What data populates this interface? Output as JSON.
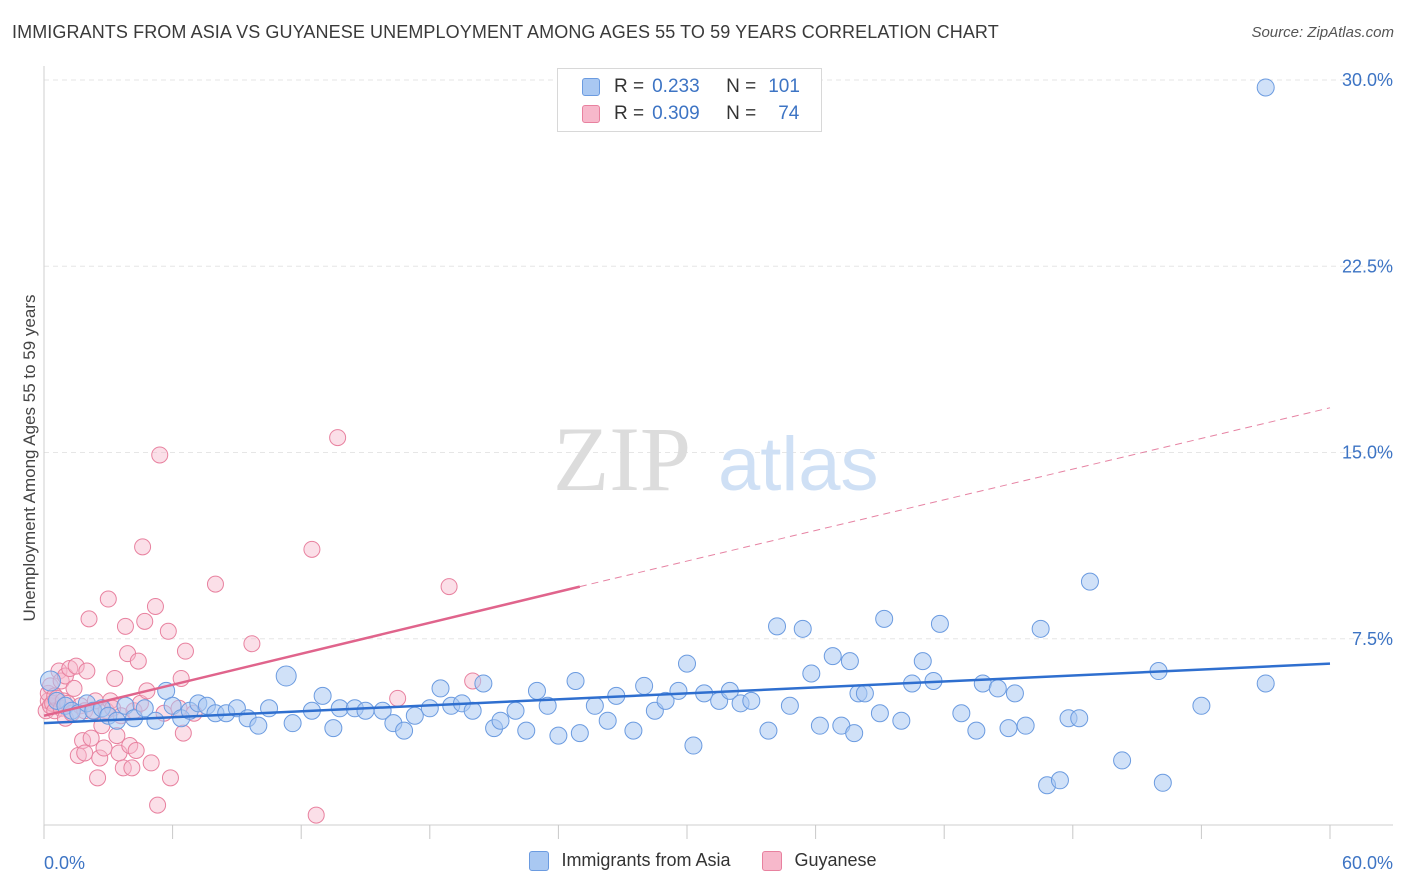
{
  "header": {
    "title": "IMMIGRANTS FROM ASIA VS GUYANESE UNEMPLOYMENT AMONG AGES 55 TO 59 YEARS CORRELATION CHART",
    "source": "Source: ZipAtlas.com"
  },
  "watermark": {
    "zip": "ZIP",
    "atlas": "atlas"
  },
  "legend": {
    "r_label": "R =",
    "n_label": "N =",
    "asia": {
      "r": "0.233",
      "n": "101"
    },
    "guyanese": {
      "r": "0.309",
      "n": "74"
    }
  },
  "colors": {
    "asia_fill": "#a9c8f2",
    "asia_stroke": "#6b9be0",
    "asia_line": "#2f6fcf",
    "guy_fill": "#f7b8cb",
    "guy_stroke": "#e8819f",
    "guy_line": "#e0648c",
    "grid": "#e6e6e6",
    "label": "#3d74c4"
  },
  "chart_data": {
    "type": "scatter",
    "title": "IMMIGRANTS FROM ASIA VS GUYANESE UNEMPLOYMENT AMONG AGES 55 TO 59 YEARS CORRELATION CHART",
    "xlabel": "",
    "ylabel": "Unemployment Among Ages 55 to 59 years",
    "xlim": [
      0,
      60
    ],
    "ylim": [
      0,
      30
    ],
    "x_tick_labels": [
      "0.0%",
      "60.0%"
    ],
    "y_ticks": [
      7.5,
      15.0,
      22.5,
      30.0
    ],
    "y_tick_labels": [
      "7.5%",
      "15.0%",
      "22.5%",
      "30.0%"
    ],
    "x_minor_ticks": [
      0,
      6,
      12,
      18,
      24,
      30,
      36,
      42,
      48,
      54,
      60
    ],
    "grid": true,
    "series": [
      {
        "name": "Immigrants from Asia",
        "r": 0.233,
        "n": 101,
        "trend": {
          "x": [
            0,
            60
          ],
          "y": [
            4.1,
            6.5
          ],
          "style": "solid"
        },
        "points": [
          [
            0.3,
            5.8
          ],
          [
            0.6,
            5.0
          ],
          [
            1.0,
            4.8
          ],
          [
            1.3,
            4.6
          ],
          [
            1.6,
            4.5
          ],
          [
            2.0,
            4.9
          ],
          [
            2.3,
            4.6
          ],
          [
            2.7,
            4.7
          ],
          [
            3.0,
            4.4
          ],
          [
            3.4,
            4.2
          ],
          [
            3.8,
            4.8
          ],
          [
            4.2,
            4.3
          ],
          [
            4.7,
            4.7
          ],
          [
            5.2,
            4.2
          ],
          [
            5.7,
            5.4
          ],
          [
            6.0,
            4.8
          ],
          [
            6.4,
            4.3
          ],
          [
            6.8,
            4.6
          ],
          [
            7.2,
            4.9
          ],
          [
            7.6,
            4.8
          ],
          [
            8.0,
            4.5
          ],
          [
            8.5,
            4.5
          ],
          [
            9.0,
            4.7
          ],
          [
            9.5,
            4.3
          ],
          [
            10.0,
            4.0
          ],
          [
            10.5,
            4.7
          ],
          [
            11.3,
            6.0
          ],
          [
            11.6,
            4.1
          ],
          [
            12.5,
            4.6
          ],
          [
            13.0,
            5.2
          ],
          [
            13.5,
            3.9
          ],
          [
            13.8,
            4.7
          ],
          [
            14.5,
            4.7
          ],
          [
            15.0,
            4.6
          ],
          [
            15.8,
            4.6
          ],
          [
            16.3,
            4.1
          ],
          [
            16.8,
            3.8
          ],
          [
            17.3,
            4.4
          ],
          [
            18.0,
            4.7
          ],
          [
            18.5,
            5.5
          ],
          [
            19.0,
            4.8
          ],
          [
            19.5,
            4.9
          ],
          [
            20.0,
            4.6
          ],
          [
            20.5,
            5.7
          ],
          [
            21.0,
            3.9
          ],
          [
            21.3,
            4.2
          ],
          [
            22.0,
            4.6
          ],
          [
            22.5,
            3.8
          ],
          [
            23.0,
            5.4
          ],
          [
            23.5,
            4.8
          ],
          [
            24.0,
            3.6
          ],
          [
            24.8,
            5.8
          ],
          [
            25.0,
            3.7
          ],
          [
            25.7,
            4.8
          ],
          [
            26.3,
            4.2
          ],
          [
            26.7,
            5.2
          ],
          [
            27.5,
            3.8
          ],
          [
            28.0,
            5.6
          ],
          [
            28.5,
            4.6
          ],
          [
            29.0,
            5.0
          ],
          [
            29.6,
            5.4
          ],
          [
            30.0,
            6.5
          ],
          [
            30.3,
            3.2
          ],
          [
            30.8,
            5.3
          ],
          [
            31.5,
            5.0
          ],
          [
            32.0,
            5.4
          ],
          [
            32.5,
            4.9
          ],
          [
            33.0,
            5.0
          ],
          [
            33.8,
            3.8
          ],
          [
            34.2,
            8.0
          ],
          [
            34.8,
            4.8
          ],
          [
            35.4,
            7.9
          ],
          [
            35.8,
            6.1
          ],
          [
            36.2,
            4.0
          ],
          [
            36.8,
            6.8
          ],
          [
            37.2,
            4.0
          ],
          [
            37.6,
            6.6
          ],
          [
            38.0,
            5.3
          ],
          [
            38.3,
            5.3
          ],
          [
            37.8,
            3.7
          ],
          [
            39.0,
            4.5
          ],
          [
            39.2,
            8.3
          ],
          [
            40.0,
            4.2
          ],
          [
            40.5,
            5.7
          ],
          [
            41.0,
            6.6
          ],
          [
            41.5,
            5.8
          ],
          [
            41.8,
            8.1
          ],
          [
            42.8,
            4.5
          ],
          [
            43.5,
            3.8
          ],
          [
            43.8,
            5.7
          ],
          [
            44.5,
            5.5
          ],
          [
            45.0,
            3.9
          ],
          [
            45.3,
            5.3
          ],
          [
            45.8,
            4.0
          ],
          [
            46.5,
            7.9
          ],
          [
            46.8,
            1.6
          ],
          [
            47.4,
            1.8
          ],
          [
            47.8,
            4.3
          ],
          [
            48.3,
            4.3
          ],
          [
            48.8,
            9.8
          ],
          [
            50.3,
            2.6
          ],
          [
            52.0,
            6.2
          ],
          [
            52.2,
            1.7
          ],
          [
            54.0,
            4.8
          ],
          [
            57.0,
            5.7
          ],
          [
            57.0,
            29.7
          ]
        ]
      },
      {
        "name": "Guyanese",
        "r": 0.309,
        "n": 74,
        "trend": {
          "x": [
            0,
            25
          ],
          "y": [
            4.4,
            9.6
          ],
          "style": "solid",
          "extended_to": [
            60,
            16.8
          ],
          "extended_style": "dashed"
        },
        "points": [
          [
            0.1,
            4.6
          ],
          [
            0.2,
            5.0
          ],
          [
            0.2,
            5.3
          ],
          [
            0.3,
            4.8
          ],
          [
            0.3,
            5.6
          ],
          [
            0.4,
            4.9
          ],
          [
            0.5,
            5.2
          ],
          [
            0.5,
            4.6
          ],
          [
            0.6,
            5.1
          ],
          [
            0.7,
            6.2
          ],
          [
            0.8,
            4.7
          ],
          [
            0.8,
            5.8
          ],
          [
            0.9,
            5.0
          ],
          [
            1.0,
            6.0
          ],
          [
            1.0,
            4.3
          ],
          [
            1.1,
            4.9
          ],
          [
            1.2,
            6.3
          ],
          [
            1.3,
            4.5
          ],
          [
            1.4,
            5.5
          ],
          [
            1.5,
            6.4
          ],
          [
            1.6,
            2.8
          ],
          [
            1.7,
            4.8
          ],
          [
            1.8,
            3.4
          ],
          [
            1.9,
            2.9
          ],
          [
            1.9,
            4.6
          ],
          [
            2.0,
            6.2
          ],
          [
            2.1,
            8.3
          ],
          [
            2.2,
            3.5
          ],
          [
            2.3,
            4.6
          ],
          [
            2.4,
            5.0
          ],
          [
            2.5,
            1.9
          ],
          [
            2.6,
            2.7
          ],
          [
            2.7,
            4.0
          ],
          [
            2.8,
            3.1
          ],
          [
            2.9,
            4.6
          ],
          [
            3.0,
            9.1
          ],
          [
            3.1,
            5.0
          ],
          [
            3.2,
            4.7
          ],
          [
            3.3,
            5.9
          ],
          [
            3.4,
            3.6
          ],
          [
            3.5,
            2.9
          ],
          [
            3.6,
            4.4
          ],
          [
            3.7,
            2.3
          ],
          [
            3.8,
            8.0
          ],
          [
            3.9,
            6.9
          ],
          [
            4.0,
            3.2
          ],
          [
            4.1,
            2.3
          ],
          [
            4.2,
            4.6
          ],
          [
            4.3,
            3.0
          ],
          [
            4.4,
            6.6
          ],
          [
            4.5,
            4.9
          ],
          [
            4.6,
            11.2
          ],
          [
            4.7,
            8.2
          ],
          [
            4.8,
            5.4
          ],
          [
            5.0,
            2.5
          ],
          [
            5.2,
            8.8
          ],
          [
            5.3,
            0.8
          ],
          [
            5.4,
            14.9
          ],
          [
            5.6,
            4.5
          ],
          [
            5.8,
            7.8
          ],
          [
            5.9,
            1.9
          ],
          [
            6.3,
            4.7
          ],
          [
            6.4,
            5.9
          ],
          [
            6.5,
            3.7
          ],
          [
            6.6,
            7.0
          ],
          [
            7.0,
            4.5
          ],
          [
            8.0,
            9.7
          ],
          [
            9.7,
            7.3
          ],
          [
            12.5,
            11.1
          ],
          [
            12.7,
            0.4
          ],
          [
            13.7,
            15.6
          ],
          [
            16.5,
            5.1
          ],
          [
            18.9,
            9.6
          ],
          [
            20.0,
            5.8
          ]
        ]
      }
    ]
  },
  "bottom_legend": {
    "asia_label": "Immigrants from Asia",
    "guyanese_label": "Guyanese"
  }
}
